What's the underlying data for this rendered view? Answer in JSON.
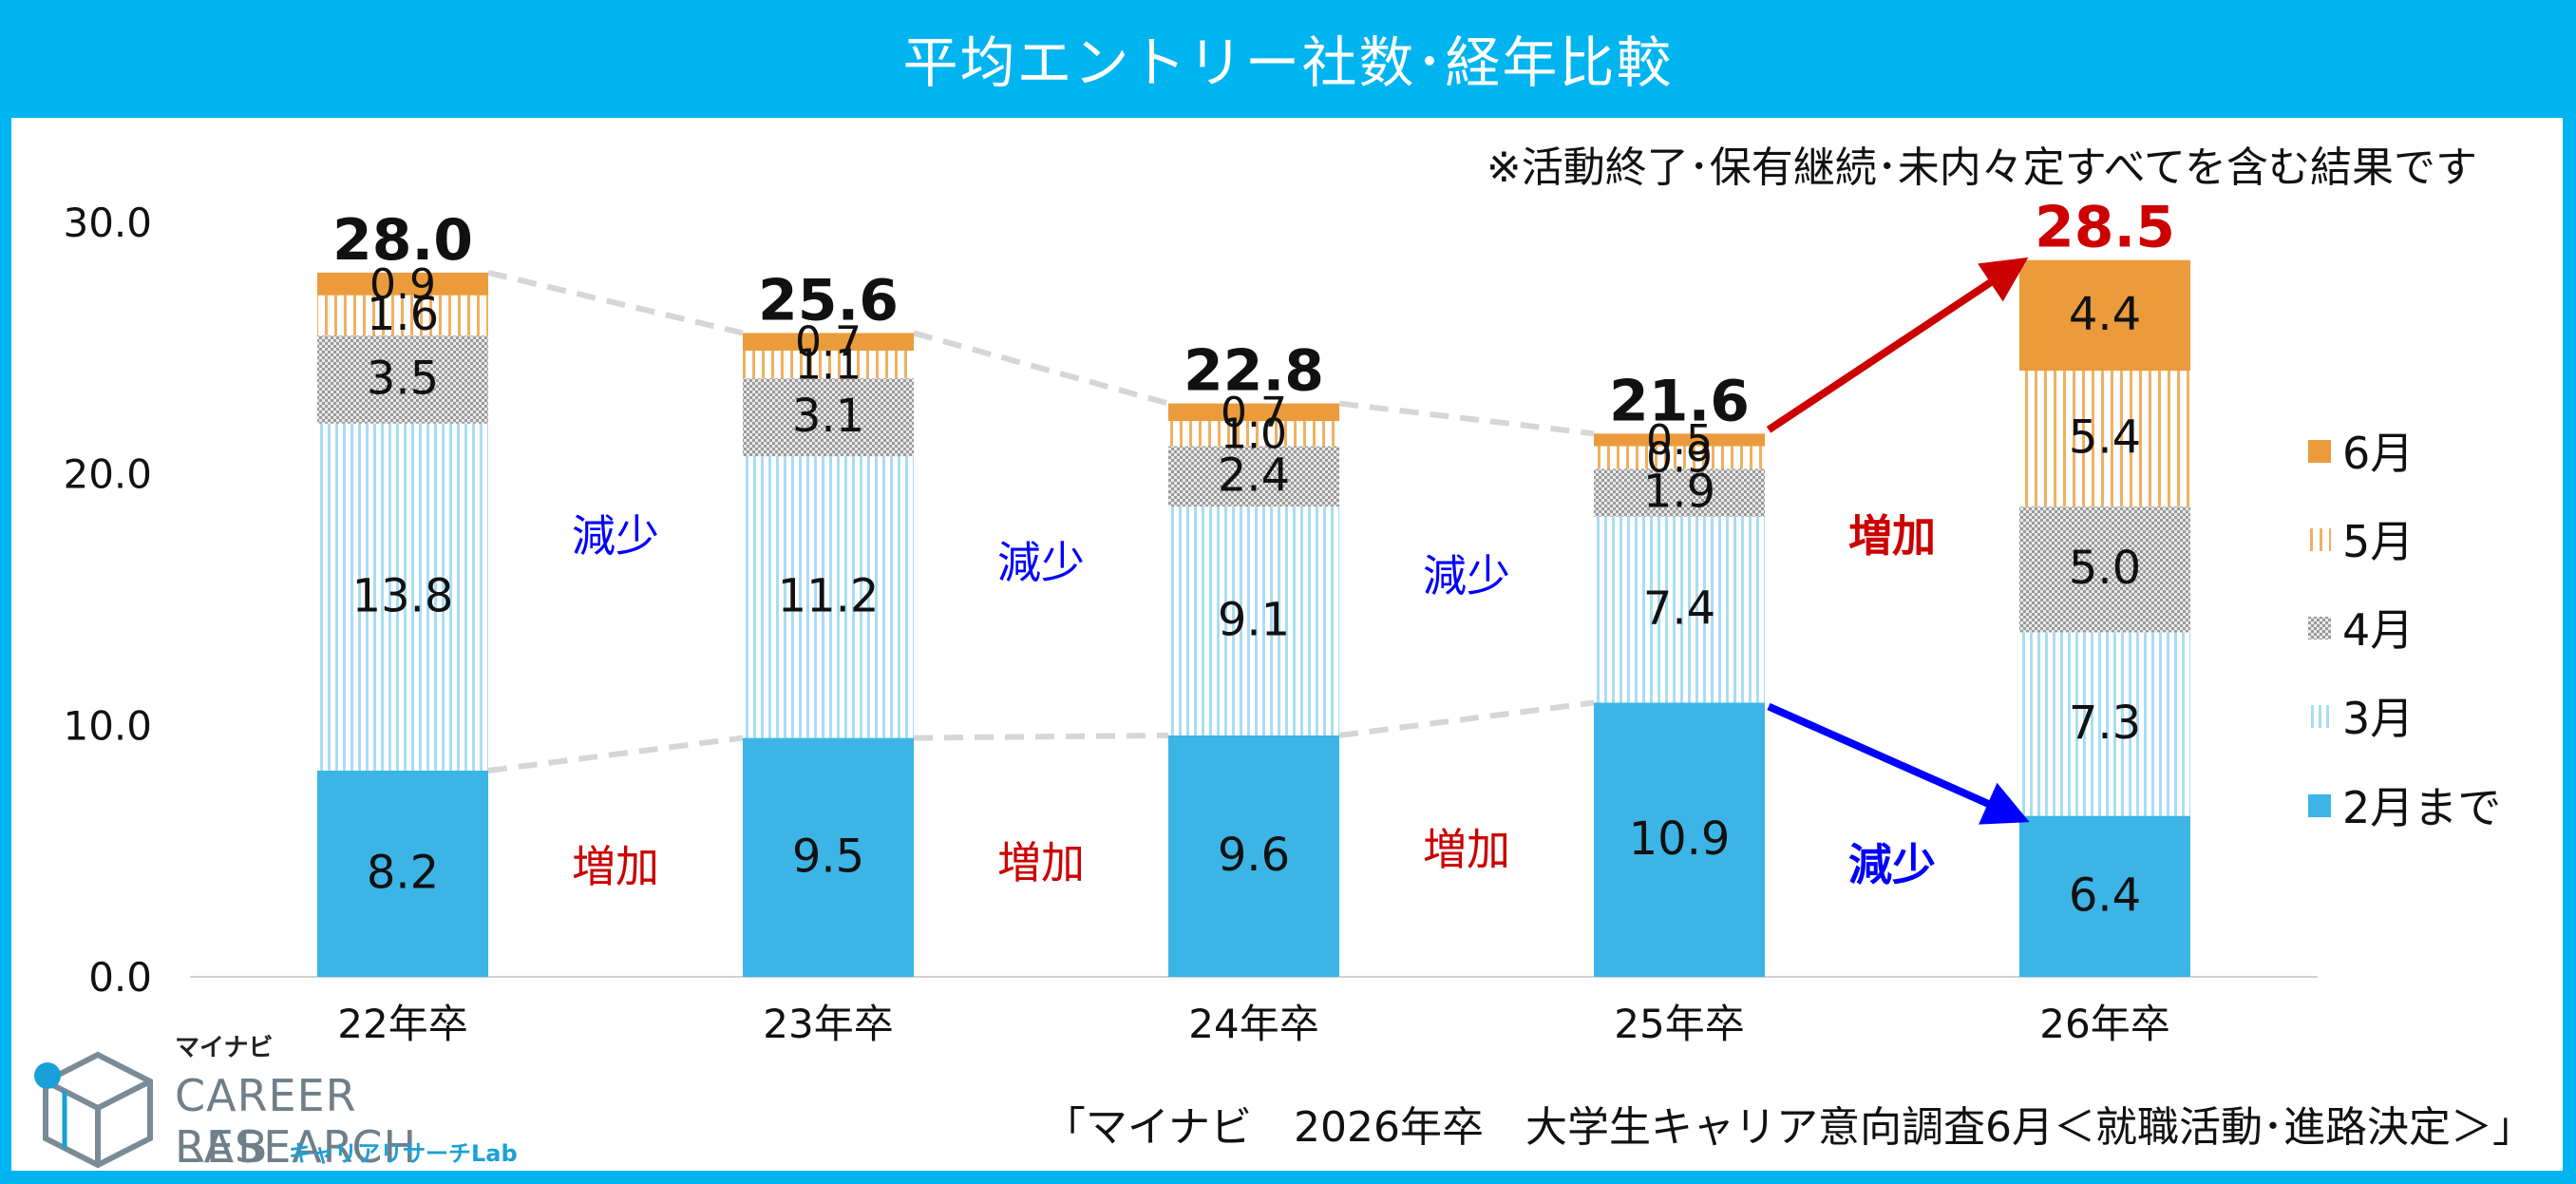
{
  "title": "平均エントリー社数･経年比較",
  "note": "※活動終了･保有継続･未内々定すべてを含む結果です",
  "source": "「マイナビ　2026年卒　大学生キャリア意向調査6月＜就職活動･進路決定＞」",
  "logo": {
    "kana": "マイナビ",
    "line1": "CAREER RESEARCH",
    "line2": "LAB",
    "sub": "キャリアリサーチLab"
  },
  "colors": {
    "frame": "#00B4F0",
    "feb": "#3CB4E6",
    "mar_stripe": "#A8DDF4",
    "apr_dots": "#A0A0A0",
    "may_stripe": "#F0B060",
    "jun": "#EB9B3C",
    "increase": "#CC0000",
    "decrease": "#0000FF"
  },
  "chart_data": {
    "type": "bar",
    "stacked": true,
    "categories": [
      "22年卒",
      "23年卒",
      "24年卒",
      "25年卒",
      "26年卒"
    ],
    "series": [
      {
        "name": "2月まで",
        "values": [
          8.2,
          9.5,
          9.6,
          10.9,
          6.4
        ]
      },
      {
        "name": "3月",
        "values": [
          13.8,
          11.2,
          9.1,
          7.4,
          7.3
        ]
      },
      {
        "name": "4月",
        "values": [
          3.5,
          3.1,
          2.4,
          1.9,
          5.0
        ]
      },
      {
        "name": "5月",
        "values": [
          1.6,
          1.1,
          1.0,
          0.9,
          5.4
        ]
      },
      {
        "name": "6月",
        "values": [
          0.9,
          0.7,
          0.7,
          0.5,
          4.4
        ]
      }
    ],
    "labels": [
      [
        "8.2",
        "9.5",
        "9.6",
        "10.9",
        "6.4"
      ],
      [
        "13.8",
        "11.2",
        "9.1",
        "7.4",
        "7.3"
      ],
      [
        "3.5",
        "3.1",
        "2.4",
        "1.9",
        "5.0"
      ],
      [
        "1.6",
        "1.1",
        "1.0",
        "0.9",
        "5.4"
      ],
      [
        "0.9",
        "0.7",
        "0.7",
        "0.5",
        "4.4"
      ]
    ],
    "totals": [
      "28.0",
      "25.6",
      "22.8",
      "21.6",
      "28.5"
    ],
    "ylim": [
      0,
      30
    ],
    "yticks": [
      "0.0",
      "10.0",
      "20.0",
      "30.0"
    ],
    "legend_position": "right",
    "legend_order": [
      "6月",
      "5月",
      "4月",
      "3月",
      "2月まで"
    ],
    "annotations_between": [
      {
        "upper": "減少",
        "lower": "増加"
      },
      {
        "upper": "減少",
        "lower": "増加"
      },
      {
        "upper": "減少",
        "lower": "増加"
      },
      {
        "upper": "増加",
        "lower": "減少"
      }
    ]
  }
}
